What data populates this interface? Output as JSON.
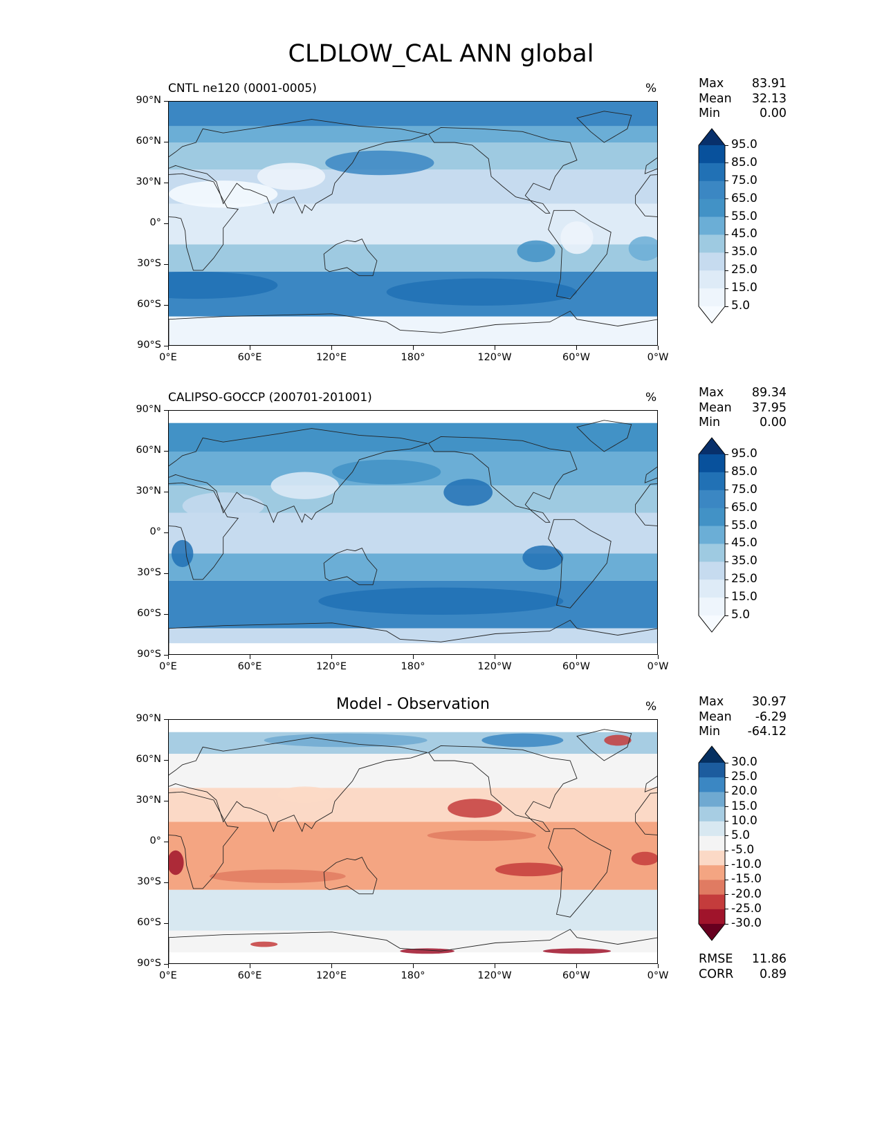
{
  "figure_title": "CLDLOW_CAL ANN global",
  "panels": [
    {
      "title": "CNTL ne120 (0001-0005)",
      "unit": "%",
      "stats": {
        "max_label": "Max",
        "max": "83.91",
        "mean_label": "Mean",
        "mean": "32.13",
        "min_label": "Min",
        "min": "0.00"
      },
      "colorbar": {
        "labels": [
          "95.0",
          "85.0",
          "75.0",
          "65.0",
          "55.0",
          "45.0",
          "35.0",
          "25.0",
          "15.0",
          "5.0"
        ],
        "colors": [
          "#08306b",
          "#08519c",
          "#2171b5",
          "#3b87c3",
          "#4292c6",
          "#6baed6",
          "#9ecae1",
          "#c6dbef",
          "#deebf7",
          "#eef5fc",
          "#f7fbff"
        ]
      }
    },
    {
      "title": "CALIPSO-GOCCP (200701-201001)",
      "unit": "%",
      "stats": {
        "max_label": "Max",
        "max": "89.34",
        "mean_label": "Mean",
        "mean": "37.95",
        "min_label": "Min",
        "min": "0.00"
      },
      "colorbar": {
        "labels": [
          "95.0",
          "85.0",
          "75.0",
          "65.0",
          "55.0",
          "45.0",
          "35.0",
          "25.0",
          "15.0",
          "5.0"
        ],
        "colors": [
          "#08306b",
          "#08519c",
          "#2171b5",
          "#3b87c3",
          "#4292c6",
          "#6baed6",
          "#9ecae1",
          "#c6dbef",
          "#deebf7",
          "#eef5fc",
          "#f7fbff"
        ]
      }
    },
    {
      "title": "Model - Observation",
      "unit": "%",
      "stats": {
        "max_label": "Max",
        "max": "30.97",
        "mean_label": "Mean",
        "mean": "-6.29",
        "min_label": "Min",
        "min": "-64.12"
      },
      "colorbar": {
        "labels": [
          "30.0",
          "25.0",
          "20.0",
          "15.0",
          "10.0",
          "5.0",
          "-5.0",
          "-10.0",
          "-15.0",
          "-20.0",
          "-25.0",
          "-30.0"
        ],
        "colors": [
          "#053061",
          "#1c5c9e",
          "#3b87c3",
          "#6fa9d1",
          "#a7cde3",
          "#d8e8f1",
          "#f4f4f4",
          "#fbd9c6",
          "#f4a582",
          "#e07b62",
          "#c43c3c",
          "#a0142b",
          "#67001f"
        ]
      },
      "metrics": {
        "rmse_label": "RMSE",
        "rmse": "11.86",
        "corr_label": "CORR",
        "corr": "0.89"
      }
    }
  ],
  "axes": {
    "lat_labels": [
      "90°N",
      "60°N",
      "30°N",
      "0°",
      "30°S",
      "60°S",
      "90°S"
    ],
    "lon_labels": [
      "0°E",
      "60°E",
      "120°E",
      "180°",
      "120°W",
      "60°W",
      "0°W"
    ]
  },
  "map_fill": {
    "panel1_bands": [
      {
        "lat": [
          90,
          72
        ],
        "color": "#3b87c3"
      },
      {
        "lat": [
          72,
          60
        ],
        "color": "#6baed6"
      },
      {
        "lat": [
          60,
          40
        ],
        "color": "#9ecae1"
      },
      {
        "lat": [
          40,
          15
        ],
        "color": "#c6dbef"
      },
      {
        "lat": [
          15,
          -15
        ],
        "color": "#deebf7"
      },
      {
        "lat": [
          -15,
          -35
        ],
        "color": "#9ecae1"
      },
      {
        "lat": [
          -35,
          -68
        ],
        "color": "#3b87c3"
      },
      {
        "lat": [
          -68,
          -90
        ],
        "color": "#eef5fc"
      }
    ],
    "panel2_bands": [
      {
        "lat": [
          90,
          81
        ],
        "color": "#ffffff"
      },
      {
        "lat": [
          81,
          60
        ],
        "color": "#4292c6"
      },
      {
        "lat": [
          60,
          35
        ],
        "color": "#6baed6"
      },
      {
        "lat": [
          35,
          15
        ],
        "color": "#9ecae1"
      },
      {
        "lat": [
          15,
          -15
        ],
        "color": "#c6dbef"
      },
      {
        "lat": [
          -15,
          -35
        ],
        "color": "#6baed6"
      },
      {
        "lat": [
          -35,
          -70
        ],
        "color": "#3b87c3"
      },
      {
        "lat": [
          -70,
          -81
        ],
        "color": "#c6dbef"
      },
      {
        "lat": [
          -81,
          -90
        ],
        "color": "#ffffff"
      }
    ],
    "panel3_bands": [
      {
        "lat": [
          90,
          81
        ],
        "color": "#ffffff"
      },
      {
        "lat": [
          81,
          65
        ],
        "color": "#a7cde3"
      },
      {
        "lat": [
          65,
          40
        ],
        "color": "#f4f4f4"
      },
      {
        "lat": [
          40,
          15
        ],
        "color": "#fbd9c6"
      },
      {
        "lat": [
          15,
          -35
        ],
        "color": "#f4a582"
      },
      {
        "lat": [
          -35,
          -65
        ],
        "color": "#d8e8f1"
      },
      {
        "lat": [
          -65,
          -81
        ],
        "color": "#f4f4f4"
      },
      {
        "lat": [
          -81,
          -90
        ],
        "color": "#ffffff"
      }
    ]
  }
}
